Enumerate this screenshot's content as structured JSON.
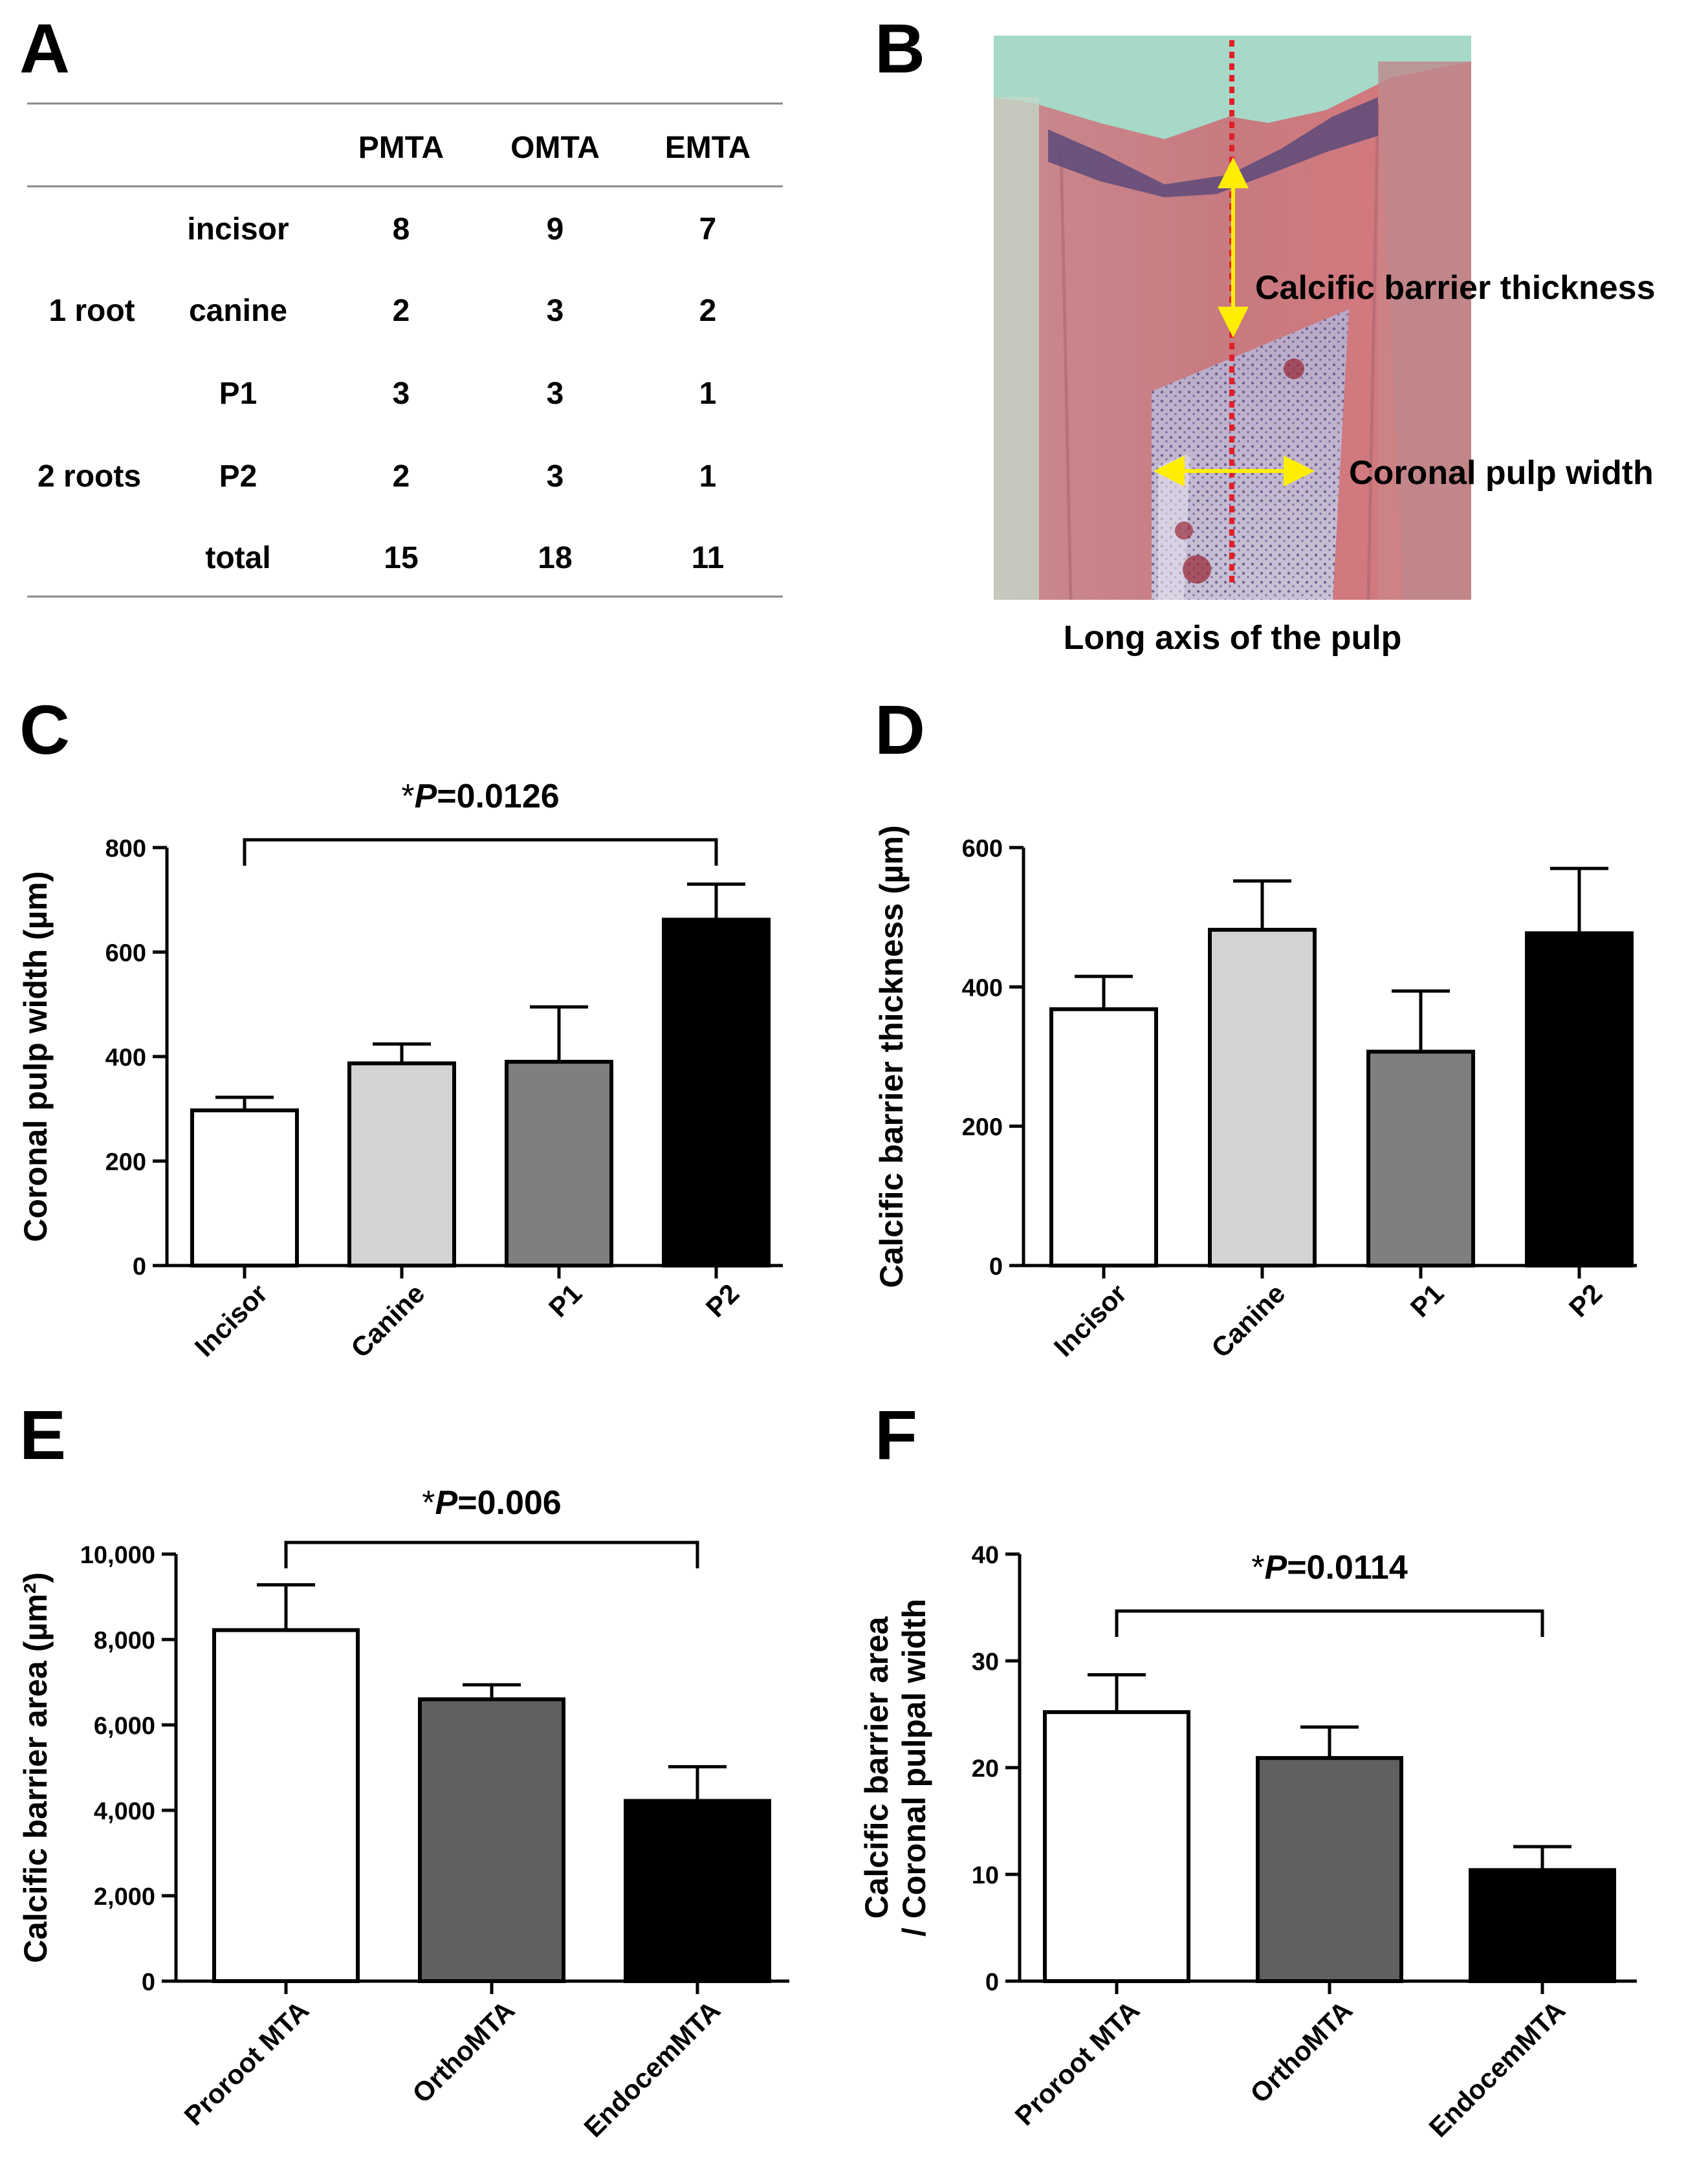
{
  "panels": {
    "A": "A",
    "B": "B",
    "C": "C",
    "D": "D",
    "E": "E",
    "F": "F"
  },
  "table": {
    "headers": [
      "PMTA",
      "OMTA",
      "EMTA"
    ],
    "group_labels": [
      "1 root",
      "2 roots"
    ],
    "rows": [
      {
        "tooth": "incisor",
        "values": [
          "8",
          "9",
          "7"
        ]
      },
      {
        "tooth": "canine",
        "values": [
          "2",
          "3",
          "2"
        ]
      },
      {
        "tooth": "P1",
        "values": [
          "3",
          "3",
          "1"
        ]
      },
      {
        "tooth": "P2",
        "values": [
          "2",
          "3",
          "1"
        ]
      },
      {
        "tooth": "total",
        "values": [
          "15",
          "18",
          "11"
        ]
      }
    ]
  },
  "histology": {
    "label_barrier": "Calcific barrier thickness",
    "label_width": "Coronal pulp width",
    "caption": "Long axis of the pulp",
    "colors": {
      "axis_line": "#e0202a",
      "arrows": "#ffee00"
    }
  },
  "chart_data": [
    {
      "id": "C",
      "type": "bar",
      "categories": [
        "Incisor",
        "Canine",
        "P1",
        "P2"
      ],
      "values": [
        297,
        387,
        390,
        662
      ],
      "errors": [
        25,
        37,
        105,
        68
      ],
      "colors": [
        "#ffffff",
        "#d3d3d3",
        "#7f7f7f",
        "#000000"
      ],
      "ylabel": "Coronal pulp width (µm)",
      "ylim": [
        0,
        800
      ],
      "yticks": [
        0,
        200,
        400,
        600,
        800
      ],
      "ytick_labels": [
        "0",
        "200",
        "400",
        "600",
        "800"
      ],
      "significance": {
        "from": 0,
        "to": 3,
        "star": "*",
        "p_letter": "P",
        "p_value": "=0.0126"
      }
    },
    {
      "id": "D",
      "type": "bar",
      "categories": [
        "Incisor",
        "Canine",
        "P1",
        "P2"
      ],
      "values": [
        368,
        482,
        307,
        477
      ],
      "errors": [
        47,
        70,
        87,
        93
      ],
      "colors": [
        "#ffffff",
        "#d3d3d3",
        "#7f7f7f",
        "#000000"
      ],
      "ylabel": "Calcific barrier thickness (µm)",
      "ylim": [
        0,
        600
      ],
      "yticks": [
        0,
        200,
        400,
        600
      ],
      "ytick_labels": [
        "0",
        "200",
        "400",
        "600"
      ]
    },
    {
      "id": "E",
      "type": "bar",
      "categories": [
        "Proroot MTA",
        "OrthoMTA",
        "EndocemMTA"
      ],
      "values": [
        8220,
        6600,
        4220
      ],
      "errors": [
        1060,
        340,
        800
      ],
      "colors": [
        "#ffffff",
        "#606060",
        "#000000"
      ],
      "ylabel": "Calcific barrier area (µm²)",
      "ylim": [
        0,
        10000
      ],
      "yticks": [
        0,
        2000,
        4000,
        6000,
        8000,
        10000
      ],
      "ytick_labels": [
        "0",
        "2,000",
        "4,000",
        "6,000",
        "8,000",
        "10,000"
      ],
      "significance": {
        "from": 0,
        "to": 2,
        "star": "*",
        "p_letter": "P",
        "p_value": "=0.006"
      }
    },
    {
      "id": "F",
      "type": "bar",
      "categories": [
        "Proroot MTA",
        "OrthoMTA",
        "EndocemMTA"
      ],
      "values": [
        25.2,
        20.9,
        10.4
      ],
      "errors": [
        3.5,
        2.9,
        2.2
      ],
      "colors": [
        "#ffffff",
        "#606060",
        "#000000"
      ],
      "ylabel": "Calcific barrier area",
      "ylabel2": "/ Coronal pulpal width",
      "ylim": [
        0,
        40
      ],
      "yticks": [
        0,
        10,
        20,
        30,
        40
      ],
      "ytick_labels": [
        "0",
        "10",
        "20",
        "30",
        "40"
      ],
      "significance": {
        "from": 0,
        "to": 2,
        "star": "*",
        "p_letter": "P",
        "p_value": "=0.0114"
      }
    }
  ]
}
